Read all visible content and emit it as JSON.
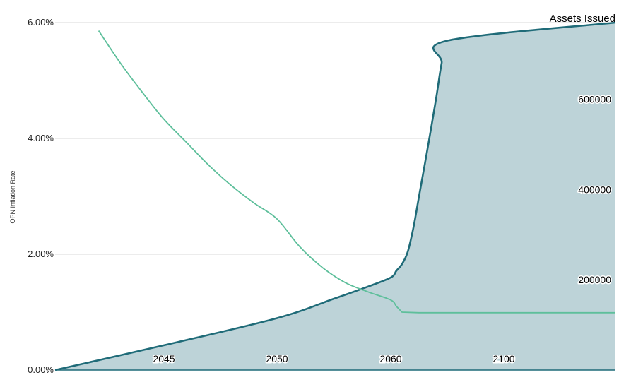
{
  "chart_data": {
    "type": "line",
    "ylabel_left": "OPN Inflation Rate",
    "ylabel_right": "Assets Issued",
    "yticks_left": [
      "0.00%",
      "2.00%",
      "4.00%",
      "6.00%"
    ],
    "yticks_right": [
      "200000",
      "400000",
      "600000"
    ],
    "ylim_left": [
      0,
      6
    ],
    "ylim_right": [
      0,
      770000
    ],
    "xticks": [
      {
        "label": "2045",
        "at": 2045
      },
      {
        "label": "2050",
        "at": 2050
      },
      {
        "label": "2060",
        "at": 2060
      },
      {
        "label": "2100",
        "at": 2100
      }
    ],
    "grid": true,
    "series": [
      {
        "name": "OPN Inflation Rate",
        "axis": "left",
        "style": "line",
        "color": "#5ebf9b",
        "points": [
          [
            2042,
            5.86
          ],
          [
            2043,
            5.3
          ],
          [
            2044,
            4.8
          ],
          [
            2045,
            4.33
          ],
          [
            2046,
            3.93
          ],
          [
            2047,
            3.53
          ],
          [
            2048,
            3.18
          ],
          [
            2049,
            2.88
          ],
          [
            2050,
            2.61
          ],
          [
            2052,
            2.13
          ],
          [
            2054,
            1.77
          ],
          [
            2056,
            1.51
          ],
          [
            2058,
            1.35
          ],
          [
            2060,
            1.21
          ],
          [
            2062,
            1.1
          ],
          [
            2064,
            1.0
          ],
          [
            2070,
            0.99
          ],
          [
            2090,
            0.99
          ],
          [
            2110,
            0.99
          ]
        ]
      },
      {
        "name": "Assets Issued",
        "axis": "right",
        "style": "area",
        "color": "#1f6b78",
        "fill": "#bdd3d8",
        "points": [
          [
            2040,
            0
          ],
          [
            2045,
            55000
          ],
          [
            2050,
            115000
          ],
          [
            2055,
            158000
          ],
          [
            2058,
            185000
          ],
          [
            2060,
            205000
          ],
          [
            2062,
            220000
          ],
          [
            2064,
            235000
          ],
          [
            2066,
            262000
          ],
          [
            2068,
            315000
          ],
          [
            2070,
            385000
          ],
          [
            2073,
            490000
          ],
          [
            2076,
            600000
          ],
          [
            2078,
            680000
          ],
          [
            2080,
            730000
          ],
          [
            2110,
            770000
          ]
        ]
      }
    ]
  }
}
